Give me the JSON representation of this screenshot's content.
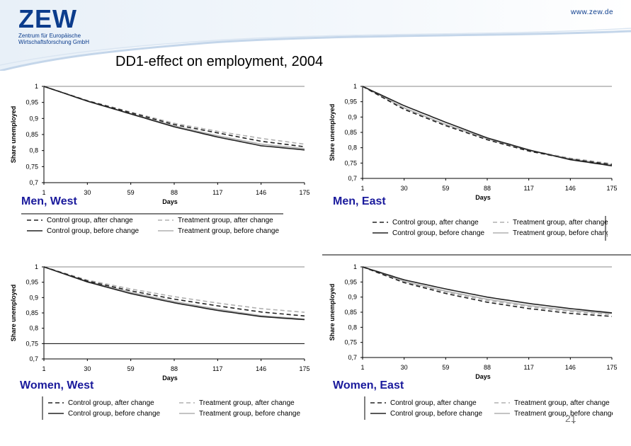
{
  "header": {
    "logo": "ZEW",
    "logo_subtitle_1": "Zentrum für Europäische",
    "logo_subtitle_2": "Wirtschaftsforschung GmbH",
    "url": "www.zew.de",
    "title": "DD1-effect on employment, 2004"
  },
  "page_number": "21",
  "colors": {
    "brand": "#0b3c8c",
    "label": "#1a1a9c",
    "dark": "#222222",
    "light": "#b0b0b0"
  },
  "legend": {
    "control_after": "Control group, after change",
    "control_before": "Control group, before change",
    "treatment_after": "Treatment group, after change",
    "treatment_before": "Treatment group, before change"
  },
  "chart_data": [
    {
      "type": "line",
      "panel_label": "Men, West",
      "xlabel": "Days",
      "ylabel": "Share unemployed",
      "xticks": [
        1,
        30,
        59,
        88,
        117,
        146,
        175
      ],
      "yticks": [
        "0,7",
        "0,75",
        "0,8",
        "0,85",
        "0,9",
        "0,95",
        "1"
      ],
      "ylim": [
        0.7,
        1
      ],
      "xlim": [
        1,
        175
      ],
      "x": [
        1,
        30,
        59,
        88,
        117,
        146,
        175
      ],
      "series": [
        {
          "name": "Control group, after change",
          "values": [
            1,
            0.955,
            0.918,
            0.881,
            0.855,
            0.829,
            0.812
          ]
        },
        {
          "name": "Control group, before change",
          "values": [
            1,
            0.954,
            0.914,
            0.874,
            0.842,
            0.815,
            0.802
          ]
        },
        {
          "name": "Treatment group, after change",
          "values": [
            1,
            0.956,
            0.92,
            0.885,
            0.86,
            0.838,
            0.82
          ]
        },
        {
          "name": "Treatment group, before change",
          "values": [
            1,
            0.955,
            0.915,
            0.877,
            0.846,
            0.82,
            0.806
          ]
        }
      ]
    },
    {
      "type": "line",
      "panel_label": "Men, East",
      "xlabel": "Days",
      "ylabel": "Share unemployed",
      "xticks": [
        1,
        30,
        59,
        88,
        117,
        146,
        175
      ],
      "yticks": [
        "0,7",
        "0,75",
        "0,8",
        "0,85",
        "0,9",
        "0,95",
        "1"
      ],
      "ylim": [
        0.7,
        1
      ],
      "xlim": [
        1,
        175
      ],
      "x": [
        1,
        30,
        59,
        88,
        117,
        146,
        175
      ],
      "series": [
        {
          "name": "Control group, after change",
          "values": [
            1,
            0.925,
            0.872,
            0.826,
            0.789,
            0.763,
            0.745
          ]
        },
        {
          "name": "Control group, before change",
          "values": [
            1,
            0.937,
            0.883,
            0.832,
            0.793,
            0.761,
            0.741
          ]
        },
        {
          "name": "Treatment group, after change",
          "values": [
            1,
            0.927,
            0.873,
            0.828,
            0.792,
            0.766,
            0.748
          ]
        },
        {
          "name": "Treatment group, before change",
          "values": [
            1,
            0.93,
            0.876,
            0.829,
            0.791,
            0.764,
            0.744
          ]
        }
      ]
    },
    {
      "type": "line",
      "panel_label": "Women, West",
      "xlabel": "Days",
      "ylabel": "Share unemployed",
      "xticks": [
        1,
        30,
        59,
        88,
        117,
        146,
        175
      ],
      "yticks": [
        "0,7",
        "0,75",
        "0,8",
        "0,85",
        "0,9",
        "0,95",
        "1"
      ],
      "ylim": [
        0.7,
        1
      ],
      "xlim": [
        1,
        175
      ],
      "x": [
        1,
        30,
        59,
        88,
        117,
        146,
        175
      ],
      "series": [
        {
          "name": "Control group, after change",
          "values": [
            1,
            0.954,
            0.922,
            0.895,
            0.873,
            0.853,
            0.84
          ]
        },
        {
          "name": "Control group, before change",
          "values": [
            1,
            0.951,
            0.913,
            0.883,
            0.858,
            0.838,
            0.828
          ]
        },
        {
          "name": "Treatment group, after change",
          "values": [
            1,
            0.957,
            0.928,
            0.903,
            0.882,
            0.864,
            0.852
          ]
        },
        {
          "name": "Treatment group, before change",
          "values": [
            1,
            0.953,
            0.917,
            0.887,
            0.862,
            0.841,
            0.83
          ]
        }
      ]
    },
    {
      "type": "line",
      "panel_label": "Women, East",
      "xlabel": "Days",
      "ylabel": "Share unemployed",
      "xticks": [
        1,
        30,
        59,
        88,
        117,
        146,
        175
      ],
      "yticks": [
        "0,7",
        "0,75",
        "0,8",
        "0,85",
        "0,9",
        "0,95",
        "1"
      ],
      "ylim": [
        0.7,
        1
      ],
      "xlim": [
        1,
        175
      ],
      "x": [
        1,
        30,
        59,
        88,
        117,
        146,
        175
      ],
      "series": [
        {
          "name": "Control group, after change",
          "values": [
            1,
            0.948,
            0.912,
            0.883,
            0.862,
            0.846,
            0.836
          ]
        },
        {
          "name": "Control group, before change",
          "values": [
            1,
            0.957,
            0.927,
            0.9,
            0.879,
            0.862,
            0.848
          ]
        },
        {
          "name": "Treatment group, after change",
          "values": [
            1,
            0.95,
            0.917,
            0.889,
            0.868,
            0.852,
            0.842
          ]
        },
        {
          "name": "Treatment group, before change",
          "values": [
            1,
            0.952,
            0.92,
            0.893,
            0.872,
            0.856,
            0.846
          ]
        }
      ]
    }
  ]
}
